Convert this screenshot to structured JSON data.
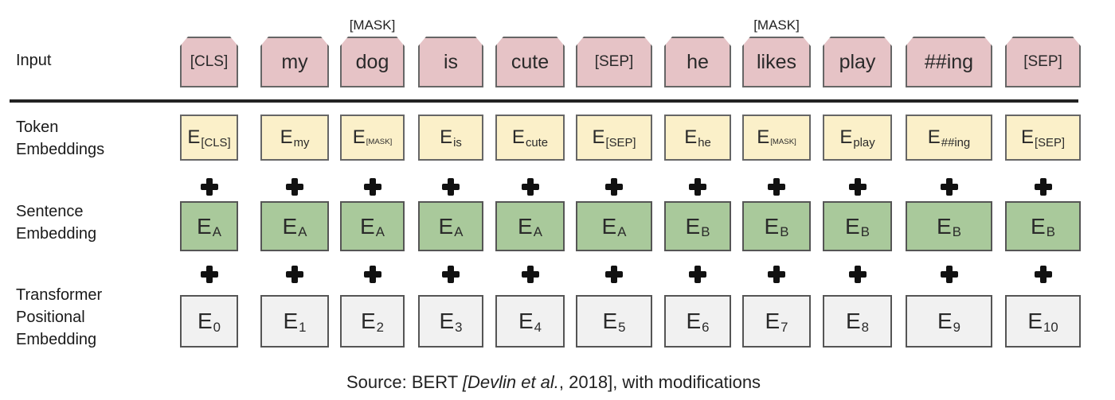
{
  "labels": {
    "input": "Input",
    "token": "Token\nEmbeddings",
    "sentence": "Sentence\nEmbedding",
    "positional": "Transformer\nPositional\nEmbedding"
  },
  "mask_tag": "[MASK]",
  "tokens": [
    {
      "input": "[CLS]",
      "tok_base": "E",
      "tok_sub": "[CLS]",
      "seg_sub": "A",
      "pos_sub": "0"
    },
    {
      "input": "my",
      "tok_base": "E",
      "tok_sub": "my",
      "seg_sub": "A",
      "pos_sub": "1"
    },
    {
      "input": "dog",
      "masked": true,
      "tok_base": "E",
      "tok_sub": "[MASK]",
      "seg_sub": "A",
      "pos_sub": "2"
    },
    {
      "input": "is",
      "tok_base": "E",
      "tok_sub": "is",
      "seg_sub": "A",
      "pos_sub": "3"
    },
    {
      "input": "cute",
      "tok_base": "E",
      "tok_sub": "cute",
      "seg_sub": "A",
      "pos_sub": "4"
    },
    {
      "input": "[SEP]",
      "tok_base": "E",
      "tok_sub": "[SEP]",
      "seg_sub": "A",
      "pos_sub": "5"
    },
    {
      "input": "he",
      "tok_base": "E",
      "tok_sub": "he",
      "seg_sub": "B",
      "pos_sub": "6"
    },
    {
      "input": "likes",
      "masked": true,
      "tok_base": "E",
      "tok_sub": "[MASK]",
      "seg_sub": "B",
      "pos_sub": "7"
    },
    {
      "input": "play",
      "tok_base": "E",
      "tok_sub": "play",
      "seg_sub": "B",
      "pos_sub": "8"
    },
    {
      "input": "##ing",
      "tok_base": "E",
      "tok_sub": "##ing",
      "seg_sub": "B",
      "pos_sub": "9"
    },
    {
      "input": "[SEP]",
      "tok_base": "E",
      "tok_sub": "[SEP]",
      "seg_sub": "B",
      "pos_sub": "10"
    }
  ],
  "caption": {
    "prefix": "Source: BERT ",
    "citation": "[Devlin et al.",
    "suffix": ", 2018], with modifications"
  },
  "colors": {
    "input": "#e6c3c6",
    "token": "#fbf0c9",
    "segment": "#a9c99b",
    "position": "#f1f1f1"
  }
}
